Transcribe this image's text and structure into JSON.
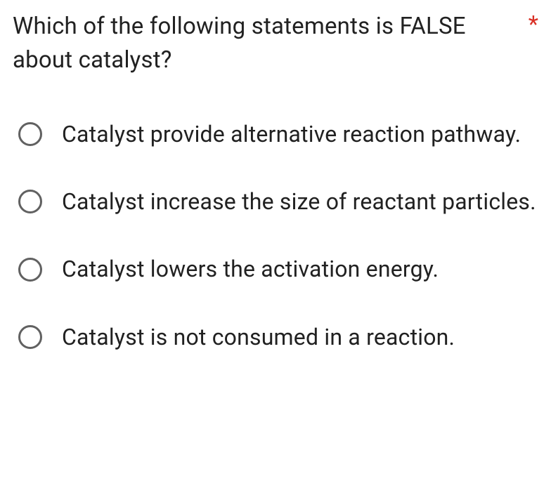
{
  "question": {
    "text": "Which of the following statements is FALSE about catalyst?",
    "required_marker": "*",
    "required_color": "#d93025",
    "text_color": "#212121",
    "fontsize": 33
  },
  "options": [
    {
      "label": "Catalyst provide alternative reaction pathway.",
      "selected": false
    },
    {
      "label": "Catalyst increase the size of reactant particles.",
      "selected": false
    },
    {
      "label": "Catalyst lowers the activation energy.",
      "selected": false
    },
    {
      "label": "Catalyst is not consumed in a reaction.",
      "selected": false
    }
  ],
  "style": {
    "background_color": "#ffffff",
    "radio_border_color": "#616161",
    "option_fontsize": 32,
    "option_text_color": "#212121"
  }
}
